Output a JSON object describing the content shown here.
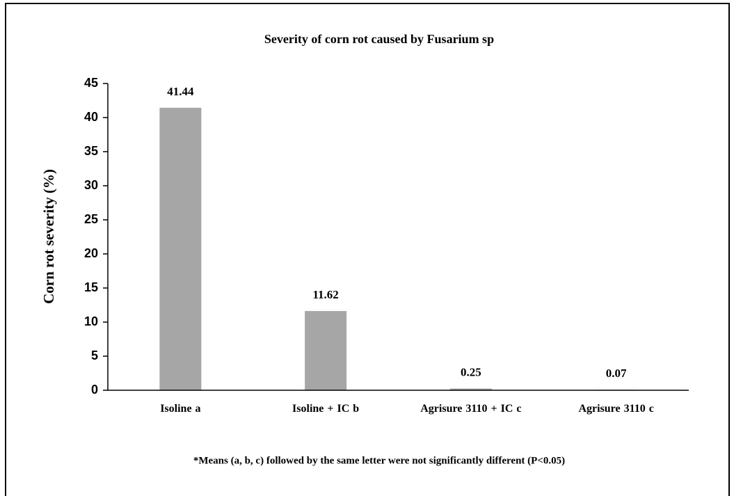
{
  "chart_data": {
    "type": "bar",
    "title": "Severity of corn rot caused by Fusarium sp",
    "ylabel": "Corn rot severity  (%)",
    "categories": [
      "Isoline  a",
      "Isoline + IC  b",
      "Agrisure 3110 + IC  c",
      "Agrisure 3110  c"
    ],
    "values": [
      41.44,
      11.62,
      0.25,
      0.07
    ],
    "value_labels": [
      "41.44",
      "11.62",
      "0.25",
      "0.07"
    ],
    "color": "#a6a6a6",
    "ylim": [
      0,
      45
    ],
    "yticks": [
      0,
      5,
      10,
      15,
      20,
      25,
      30,
      35,
      40,
      45
    ],
    "grid": false,
    "annotation": "*Means (a, b, c) followed by the same  letter were not significantly different  (P<0.05)"
  }
}
